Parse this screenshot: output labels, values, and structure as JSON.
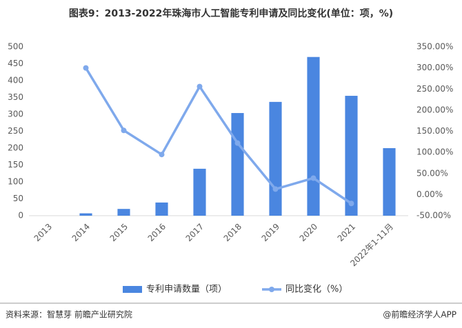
{
  "chart_data": {
    "type": "bar",
    "title": "图表9：2013-2022年珠海市人工智能专利申请及同比变化(单位：项，%)",
    "categories": [
      "2013",
      "2014",
      "2015",
      "2016",
      "2017",
      "2018",
      "2019",
      "2020",
      "2021",
      "2022年1-11月"
    ],
    "series": [
      {
        "name": "专利申请数量（项）",
        "type": "bar",
        "color": "#4a86e0",
        "values": [
          0,
          7,
          20,
          39,
          139,
          304,
          337,
          470,
          355,
          200
        ]
      },
      {
        "name": "同比变化（%）",
        "type": "line",
        "axis": "y2",
        "color": "#7fa9ec",
        "values": [
          null,
          300,
          152,
          95,
          256,
          122,
          13,
          39,
          -21,
          null
        ]
      }
    ],
    "ylim": [
      0,
      500
    ],
    "yticks": [
      0,
      50,
      100,
      150,
      200,
      250,
      300,
      350,
      400,
      450,
      500
    ],
    "y2lim": [
      -50,
      350
    ],
    "y2ticks": [
      {
        "value": -50,
        "label": "-50.00%"
      },
      {
        "value": 0,
        "label": "0.00%"
      },
      {
        "value": 50,
        "label": "50.00%"
      },
      {
        "value": 100,
        "label": "100.00%"
      },
      {
        "value": 150,
        "label": "150.00%"
      },
      {
        "value": 200,
        "label": "200.00%"
      },
      {
        "value": 250,
        "label": "250.00%"
      },
      {
        "value": 300,
        "label": "300.00%"
      },
      {
        "value": 350,
        "label": "350.00%"
      }
    ],
    "grid": false,
    "source": "资料来源：智慧芽 前瞻产业研究院",
    "credit": "@前瞻经济学人APP"
  }
}
